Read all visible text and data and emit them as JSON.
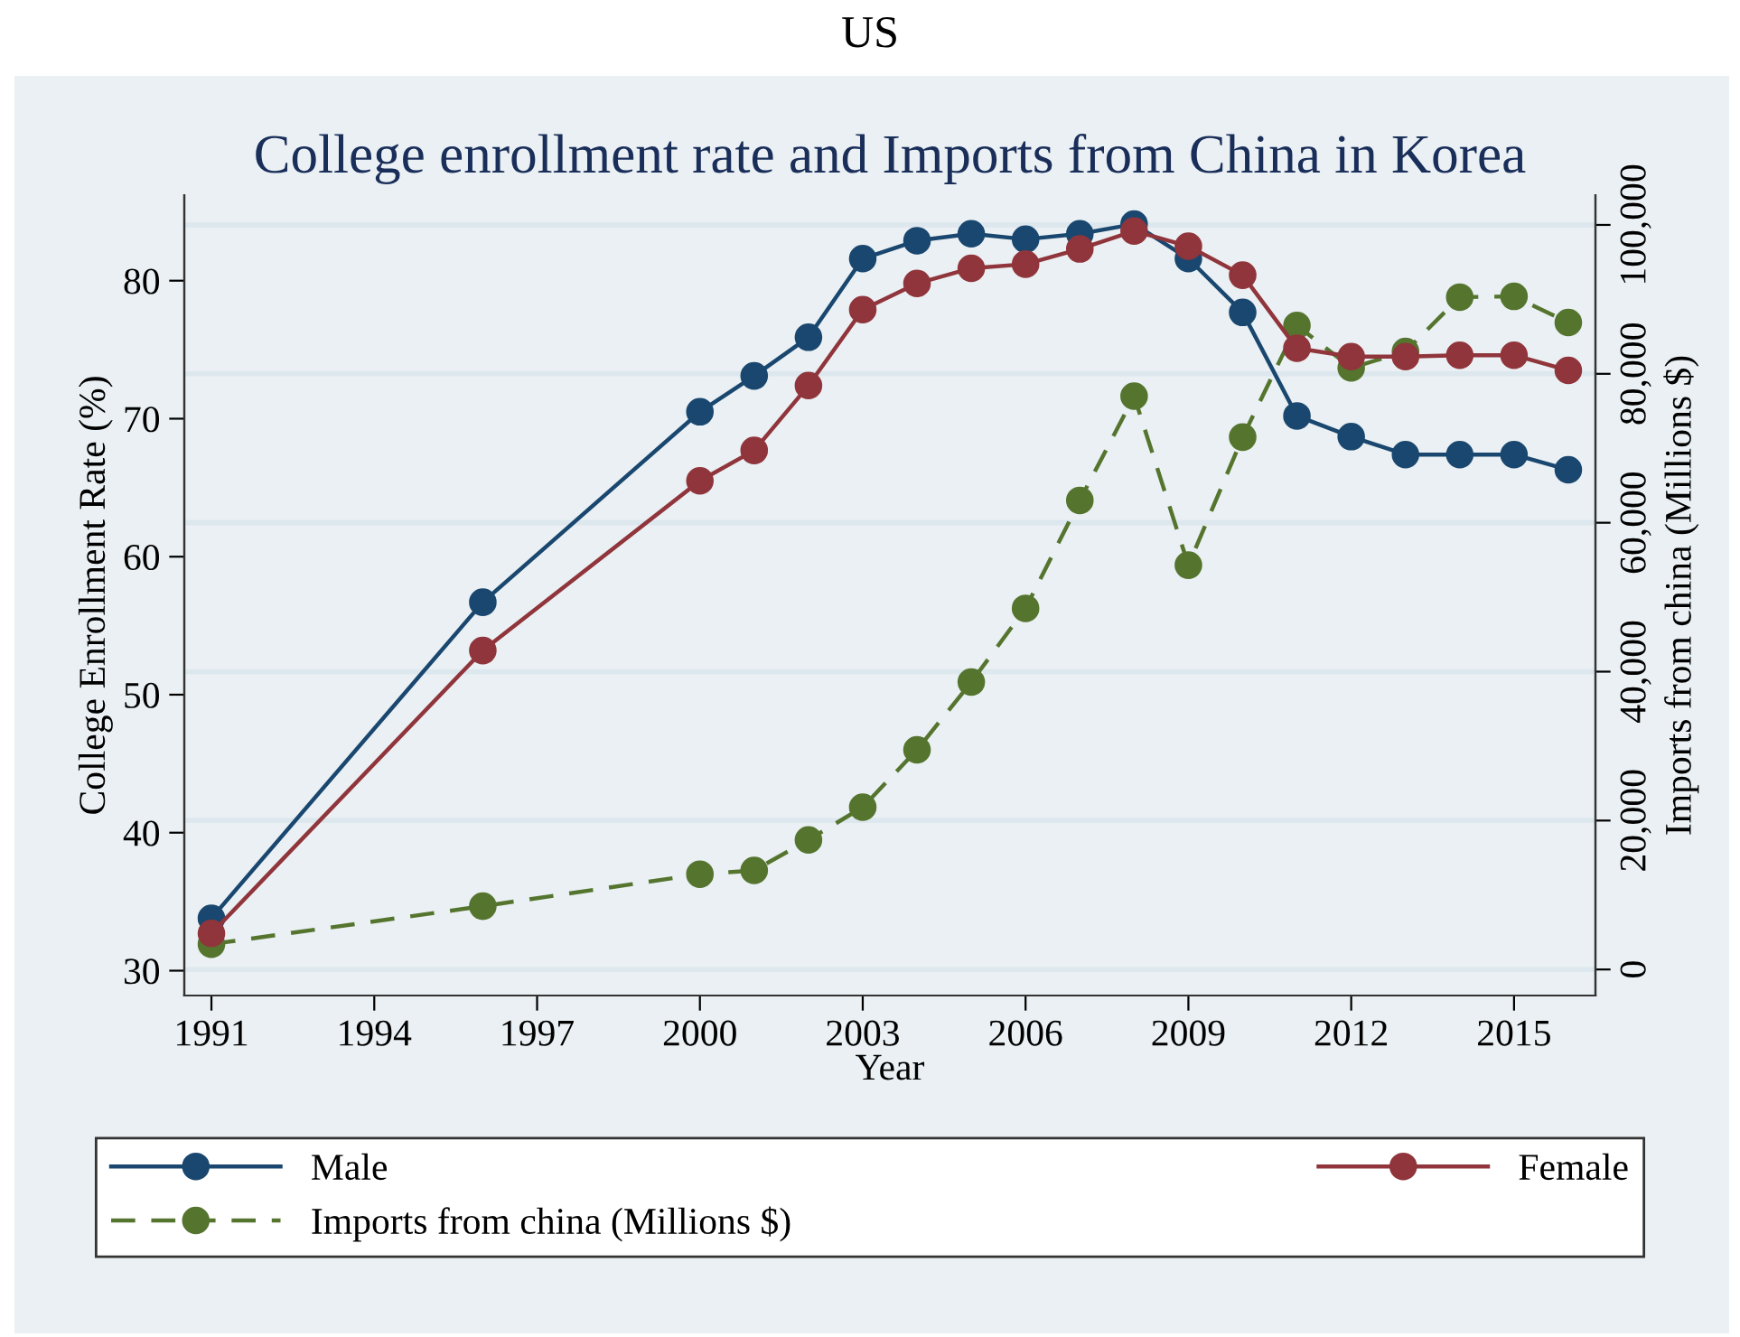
{
  "chart_data": {
    "type": "line",
    "title": "US",
    "subtitle": "College enrollment rate and Imports from China in Korea",
    "xlabel": "Year",
    "ylabel": "College Enrollment Rate (%)",
    "y2label": "Imports from china (Millions $)",
    "x": [
      1991,
      1996,
      2000,
      2001,
      2002,
      2003,
      2004,
      2005,
      2006,
      2007,
      2008,
      2009,
      2010,
      2011,
      2012,
      2013,
      2014,
      2015,
      2016
    ],
    "series": [
      {
        "name": "Male",
        "color": "#1a476f",
        "line_style": "solid",
        "values": [
          33.8,
          56.7,
          70.5,
          73.1,
          75.9,
          81.6,
          82.9,
          83.4,
          83.0,
          83.4,
          84.1,
          81.6,
          77.7,
          70.2,
          68.7,
          67.4,
          67.4,
          67.4,
          66.3
        ]
      },
      {
        "name": "Female",
        "color": "#90353b",
        "line_style": "solid",
        "values": [
          32.7,
          53.2,
          65.5,
          67.7,
          72.4,
          77.9,
          79.8,
          80.9,
          81.2,
          82.3,
          83.6,
          82.5,
          80.4,
          75.1,
          74.5,
          74.5,
          74.6,
          74.6,
          73.5
        ]
      },
      {
        "name": "Imports from china (Millions $)",
        "color": "#55752f",
        "line_style": "dashed",
        "axis": "y2",
        "values": [
          3400,
          8500,
          12800,
          13300,
          17400,
          21800,
          29500,
          38600,
          48500,
          63000,
          77000,
          54300,
          71500,
          86500,
          80800,
          83000,
          90300,
          90400,
          86900
        ]
      }
    ],
    "marker": "circle",
    "xlim": [
      1990.5,
      2016.5
    ],
    "xticks": [
      1991,
      1994,
      1997,
      2000,
      2003,
      2006,
      2009,
      2012,
      2015
    ],
    "ylim": [
      28.2,
      86.2
    ],
    "yticks": [
      30,
      40,
      50,
      60,
      70,
      80
    ],
    "y2lim": [
      -3500,
      104000
    ],
    "y2ticks": [
      0,
      {
        "value": 20000,
        "label": "20,000"
      },
      {
        "value": 40000,
        "label": "40,000"
      },
      {
        "value": 60000,
        "label": "60,000"
      },
      {
        "value": 80000,
        "label": "80,000"
      },
      {
        "value": 100000,
        "label": "100,000"
      }
    ],
    "grid": "y2",
    "legend": "bottom"
  }
}
